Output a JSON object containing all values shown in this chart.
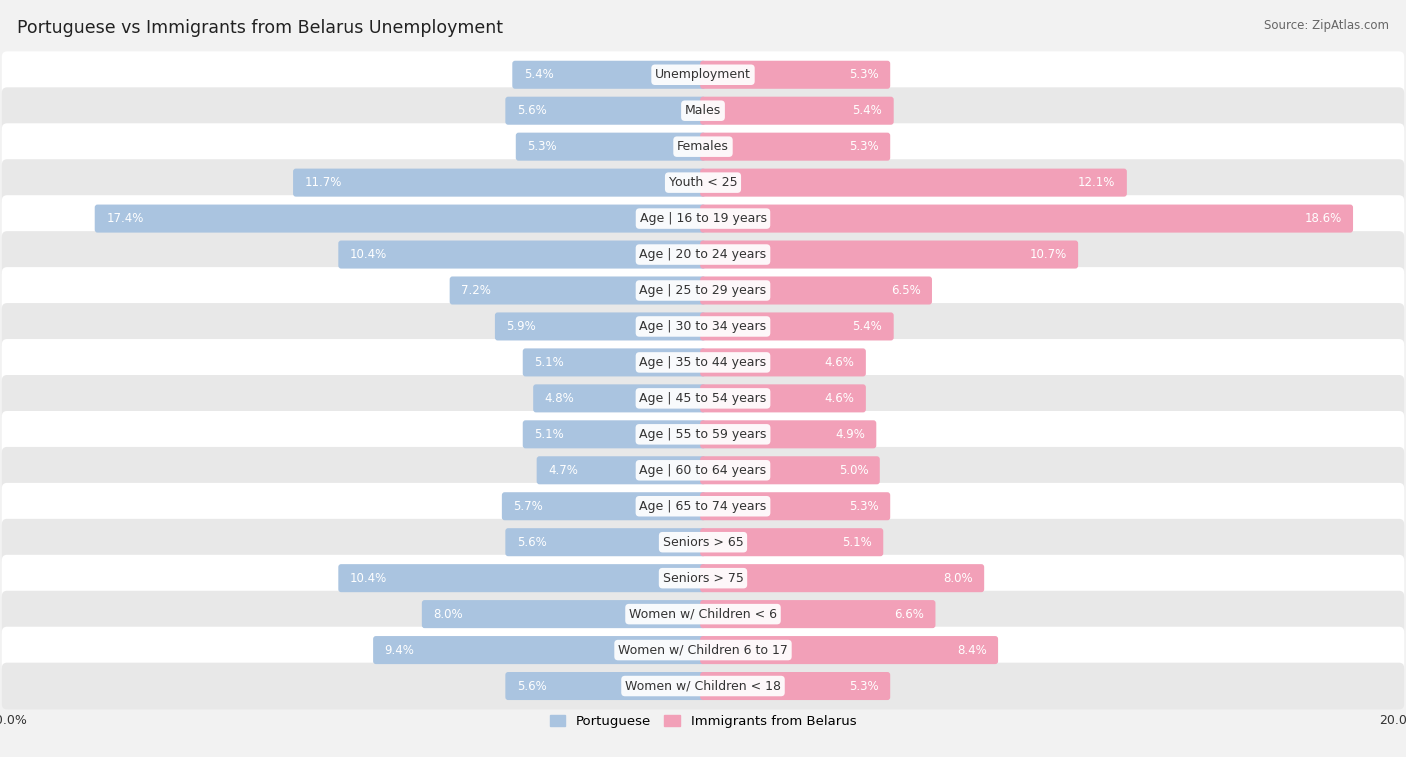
{
  "title": "Portuguese vs Immigrants from Belarus Unemployment",
  "source": "Source: ZipAtlas.com",
  "categories": [
    "Unemployment",
    "Males",
    "Females",
    "Youth < 25",
    "Age | 16 to 19 years",
    "Age | 20 to 24 years",
    "Age | 25 to 29 years",
    "Age | 30 to 34 years",
    "Age | 35 to 44 years",
    "Age | 45 to 54 years",
    "Age | 55 to 59 years",
    "Age | 60 to 64 years",
    "Age | 65 to 74 years",
    "Seniors > 65",
    "Seniors > 75",
    "Women w/ Children < 6",
    "Women w/ Children 6 to 17",
    "Women w/ Children < 18"
  ],
  "portuguese": [
    5.4,
    5.6,
    5.3,
    11.7,
    17.4,
    10.4,
    7.2,
    5.9,
    5.1,
    4.8,
    5.1,
    4.7,
    5.7,
    5.6,
    10.4,
    8.0,
    9.4,
    5.6
  ],
  "belarus": [
    5.3,
    5.4,
    5.3,
    12.1,
    18.6,
    10.7,
    6.5,
    5.4,
    4.6,
    4.6,
    4.9,
    5.0,
    5.3,
    5.1,
    8.0,
    6.6,
    8.4,
    5.3
  ],
  "portuguese_color": "#aac4e0",
  "belarus_color": "#f2a0b8",
  "bg_color": "#f2f2f2",
  "row_bg_even": "#ffffff",
  "row_bg_odd": "#e8e8e8",
  "axis_max": 20.0,
  "label_fontsize": 9.0,
  "value_fontsize": 8.5,
  "title_fontsize": 12.5,
  "source_fontsize": 8.5,
  "legend_fontsize": 9.5
}
